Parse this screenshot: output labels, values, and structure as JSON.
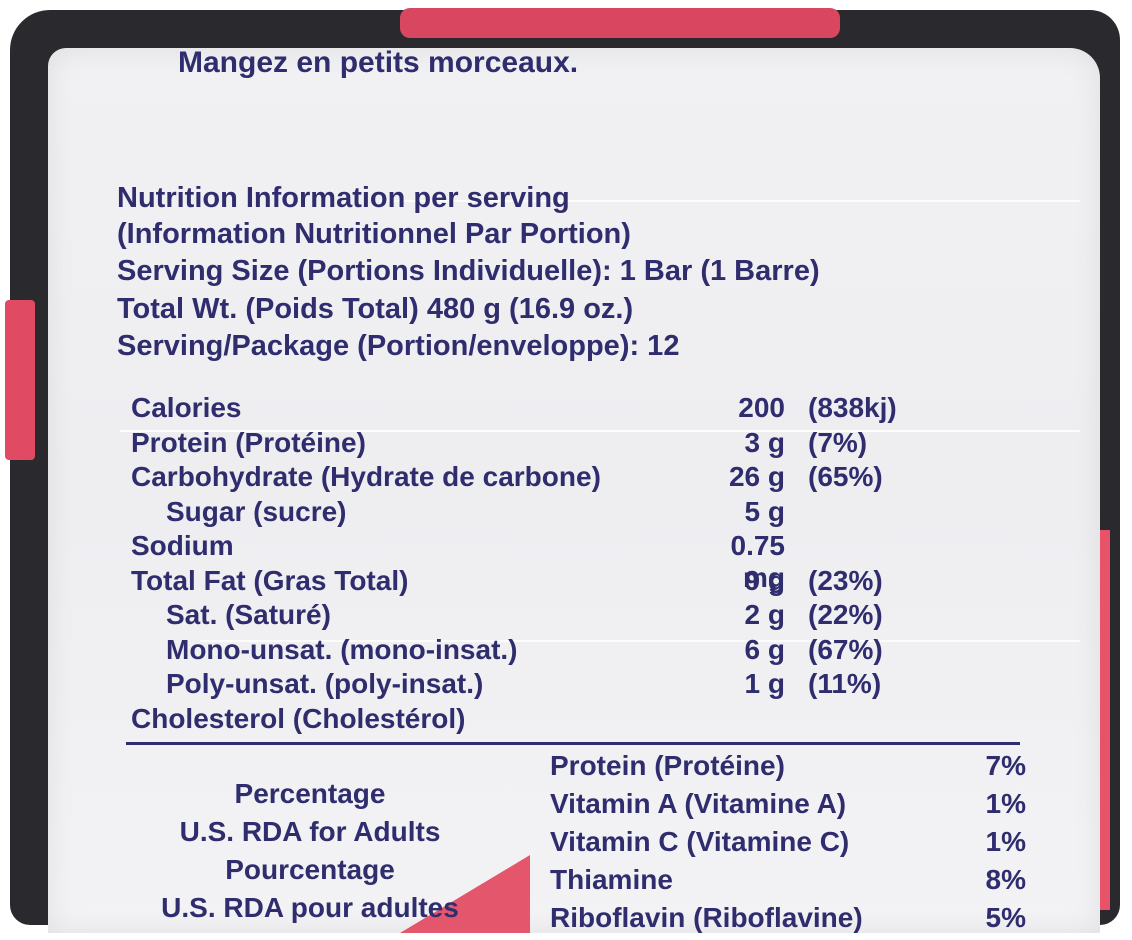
{
  "package": {
    "colors": {
      "ink": "#2f2d6e",
      "panel": "#f0f0f2",
      "pink": "#e8536a",
      "dark": "#2a2a2e"
    },
    "top_text": "Mangez en petits morceaux."
  },
  "header": {
    "line1": "Nutrition Information per serving",
    "line2": "(Information Nutritionnel Par Portion)",
    "line3": "Serving Size (Portions Individuelle):   1 Bar (1 Barre)",
    "line4": "Total Wt. (Poids Total) 480 g (16.9 oz.)",
    "line5": "Serving/Package (Portion/enveloppe): 12"
  },
  "nutrients": [
    {
      "label": "Calories",
      "amount": "200",
      "percent": "(838kj)",
      "indent": false
    },
    {
      "label": "Protein (Protéine)",
      "amount": "3 g",
      "percent": "(7%)",
      "indent": false
    },
    {
      "label": "Carbohydrate (Hydrate de carbone)",
      "amount": "26 g",
      "percent": "(65%)",
      "indent": false
    },
    {
      "label": "Sugar (sucre)",
      "amount": "5 g",
      "percent": "",
      "indent": true
    },
    {
      "label": "Sodium",
      "amount": "0.75 mg",
      "percent": "",
      "indent": false
    },
    {
      "label": "Total Fat (Gras Total)",
      "amount": "9 g",
      "percent": "(23%)",
      "indent": false
    },
    {
      "label": "Sat. (Saturé)",
      "amount": "2 g",
      "percent": "(22%)",
      "indent": true
    },
    {
      "label": "Mono-unsat. (mono-insat.)",
      "amount": "6 g",
      "percent": "(67%)",
      "indent": true
    },
    {
      "label": "Poly-unsat. (poly-insat.)",
      "amount": "1 g",
      "percent": "(11%)",
      "indent": true
    },
    {
      "label": "Cholesterol (Cholestérol)",
      "amount": "",
      "percent": "",
      "indent": false
    }
  ],
  "rda": {
    "caption": [
      "Percentage",
      "U.S. RDA for Adults",
      "Pourcentage",
      "U.S. RDA pour adultes"
    ],
    "items": [
      {
        "name": "Protein (Protéine)",
        "value": "7%"
      },
      {
        "name": "Vitamin A (Vitamine A)",
        "value": "1%"
      },
      {
        "name": "Vitamin C (Vitamine C)",
        "value": "1%"
      },
      {
        "name": "Thiamine",
        "value": "8%"
      },
      {
        "name": "Riboflavin (Riboflavine)",
        "value": "5%"
      }
    ]
  }
}
